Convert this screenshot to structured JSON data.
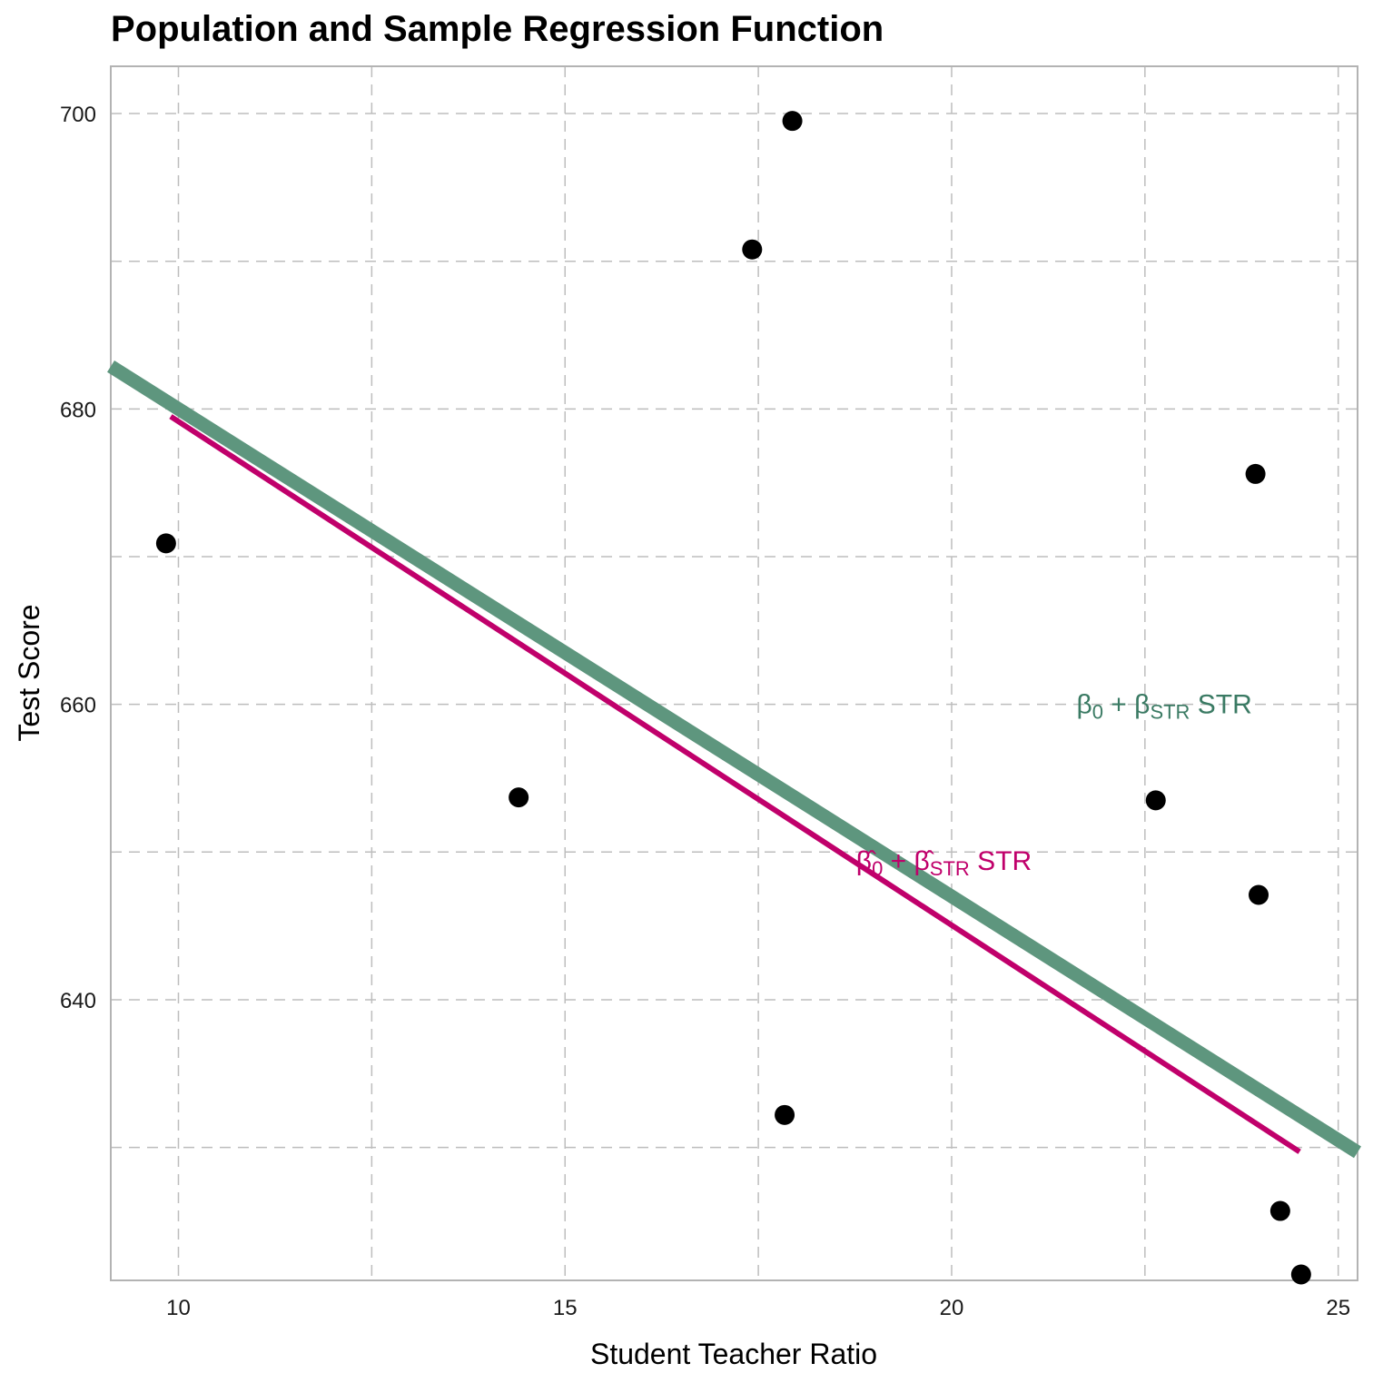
{
  "chart_data": {
    "type": "scatter",
    "title": "Population and Sample Regression Function",
    "xlabel": "Student Teacher Ratio",
    "ylabel": "Test Score",
    "xlim": [
      9.125,
      25.25
    ],
    "ylim": [
      621,
      703.2
    ],
    "x_ticks": [
      10,
      15,
      20,
      25
    ],
    "y_ticks": [
      640,
      660,
      680,
      700
    ],
    "x_minor_ticks": [
      12.5,
      17.5,
      22.5
    ],
    "y_minor_ticks": [
      630,
      650,
      670,
      690
    ],
    "grid": true,
    "points": [
      {
        "x": 9.84,
        "y": 670.9
      },
      {
        "x": 14.4,
        "y": 653.7
      },
      {
        "x": 17.42,
        "y": 690.8
      },
      {
        "x": 17.94,
        "y": 699.5
      },
      {
        "x": 17.84,
        "y": 632.2
      },
      {
        "x": 22.64,
        "y": 653.5
      },
      {
        "x": 23.93,
        "y": 675.6
      },
      {
        "x": 23.97,
        "y": 647.1
      },
      {
        "x": 24.25,
        "y": 625.7
      },
      {
        "x": 24.52,
        "y": 621.4
      }
    ],
    "lines": [
      {
        "name": "population",
        "intercept": 713,
        "slope": -3.3,
        "x_range": [
          9.125,
          25.25
        ],
        "color": "#5e967e"
      },
      {
        "name": "sample",
        "intercept": 713.25,
        "slope": -3.41,
        "x_range": [
          9.9,
          24.5
        ],
        "color": "#c0006b"
      }
    ],
    "annotations": [
      {
        "series": "population",
        "beta": "β",
        "sub0": "0",
        "plus": "+",
        "subSTR": "STR",
        "tail": "STR",
        "hat": false,
        "x": 22.75,
        "y": 660,
        "color": "#3a7a63"
      },
      {
        "series": "sample",
        "beta": "β",
        "sub0": "0",
        "plus": "+",
        "subSTR": "STR",
        "tail": "STR",
        "hat": true,
        "x": 19.9,
        "y": 649.4,
        "color": "#c0006b"
      }
    ]
  }
}
